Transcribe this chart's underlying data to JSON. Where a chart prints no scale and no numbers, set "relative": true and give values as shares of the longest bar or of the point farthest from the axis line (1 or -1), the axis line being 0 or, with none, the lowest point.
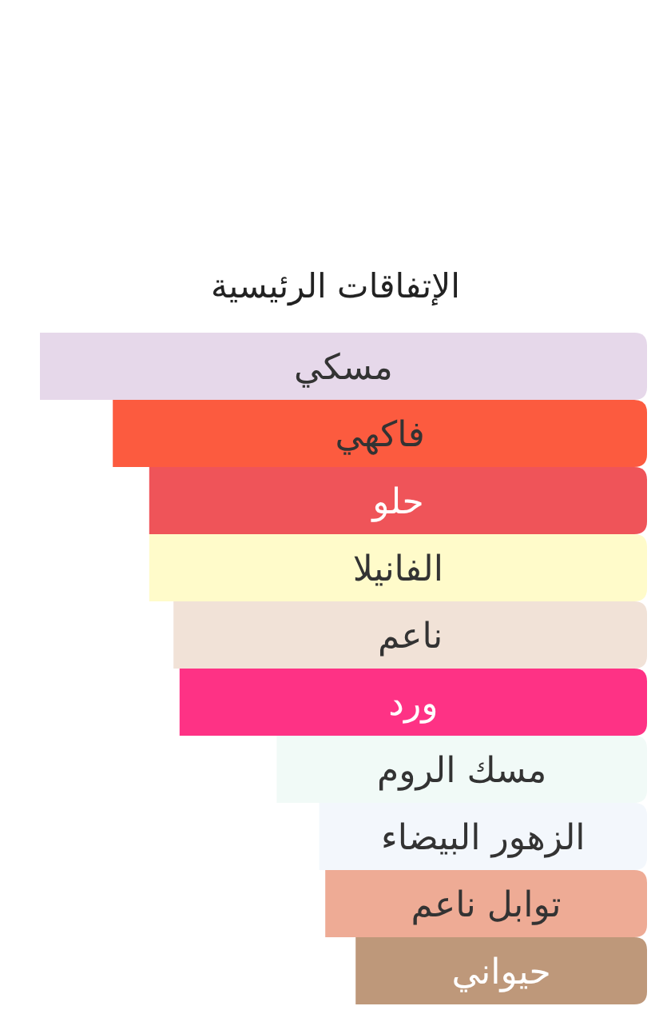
{
  "chart_data": {
    "type": "bar",
    "orientation": "horizontal",
    "relative": true,
    "title": "الإتفاقات الرئيسية",
    "categories": [
      "مسكي",
      "فاكهي",
      "حلو",
      "الفانيلا",
      "ناعم",
      "ورد",
      "مسك الروم",
      "الزهور البيضاء",
      "توابل ناعم",
      "حيواني"
    ],
    "values": [
      1,
      0.88,
      0.82,
      0.82,
      0.78,
      0.77,
      0.61,
      0.54,
      0.53,
      0.48
    ],
    "colors": [
      "#e6d8ea",
      "#fc5b3f",
      "#ef5459",
      "#fffbca",
      "#f1e2d7",
      "#fe3285",
      "#f1faf7",
      "#f3f7fc",
      "#eeab95",
      "#be987a"
    ]
  }
}
